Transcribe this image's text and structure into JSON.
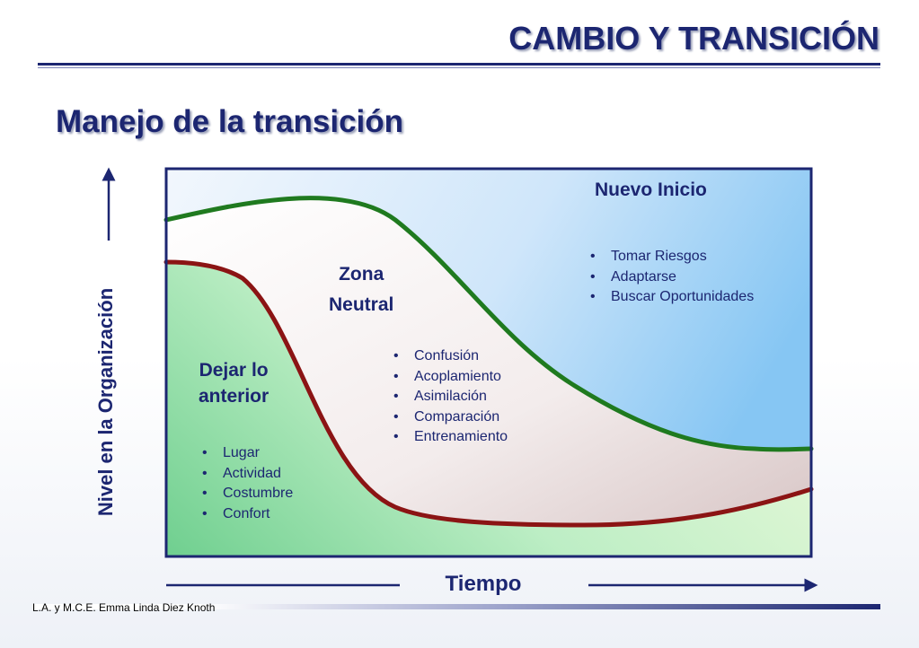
{
  "header": {
    "title": "CAMBIO Y TRANSICIÓN",
    "subtitle": "Manejo de la transición"
  },
  "axes": {
    "y_label": "Nivel en la Organización",
    "x_label": "Tiempo"
  },
  "zones": {
    "dejar": {
      "title_line1": "Dejar lo",
      "title_line2": "anterior",
      "items": [
        "Lugar",
        "Actividad",
        "Costumbre",
        "Confort"
      ]
    },
    "neutral": {
      "title_line1": "Zona",
      "title_line2": "Neutral",
      "items": [
        "Confusión",
        "Acoplamiento",
        "Asimilación",
        "Comparación",
        "Entrenamiento"
      ]
    },
    "nuevo": {
      "title": "Nuevo Inicio",
      "items": [
        "Tomar Riesgos",
        "Adaptarse",
        "Buscar Oportunidades"
      ]
    }
  },
  "colors": {
    "primary": "#1c2671",
    "green_curve": "#1f7a1f",
    "red_curve": "#8b1414",
    "sky": "#88c8f4",
    "grass": "#7fd39a"
  },
  "footer": {
    "author": "L.A. y M.C.E. Emma Linda Diez Knoth"
  }
}
